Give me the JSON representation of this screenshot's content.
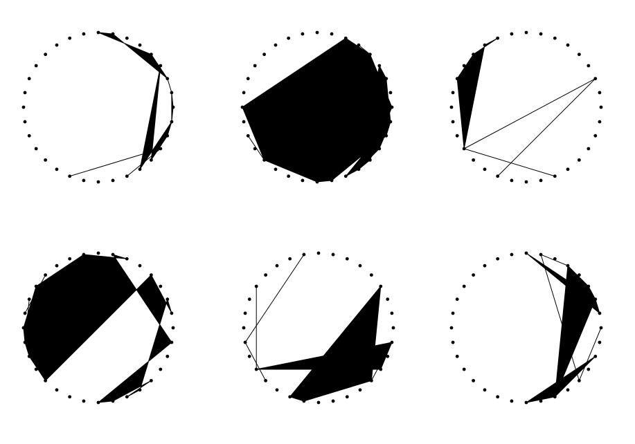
{
  "figure": {
    "panels": [
      {
        "id": "panel-1",
        "n_points": 32,
        "polygons": [
          [
            6,
            4,
            0,
            1,
            6,
            7,
            9,
            10,
            12,
            5,
            13,
            9,
            8,
            7,
            6
          ]
        ],
        "lines": [
          [
            11,
            18
          ],
          [
            11,
            14
          ]
        ],
        "dots_drawn": "all"
      },
      {
        "id": "panel-2",
        "n_points": 32,
        "polygons": [
          [
            4,
            8,
            12,
            13,
            14,
            9,
            10,
            15,
            16,
            20,
            24,
            2,
            4
          ],
          [
            9,
            11,
            13,
            5,
            6,
            9
          ]
        ],
        "lines": [
          [
            3,
            4
          ],
          [
            20,
            22
          ]
        ],
        "dots_drawn": "all"
      },
      {
        "id": "panel-3",
        "n_points": 32,
        "polygons": [
          [
            21,
            26,
            28,
            30,
            29,
            21
          ]
        ],
        "lines": [
          [
            21,
            6
          ],
          [
            21,
            14
          ],
          [
            6,
            18
          ]
        ],
        "dots_drawn": "all"
      },
      {
        "id": "panel-4",
        "n_points": 32,
        "polygons": [
          [
            4,
            7,
            6,
            13,
            14,
            12,
            15,
            16,
            9,
            1,
            2,
            31,
            27,
            24,
            23,
            22,
            20,
            4
          ]
        ],
        "lines": [
          [
            25,
            28
          ],
          [
            23,
            26
          ]
        ],
        "dots_drawn": "all"
      },
      {
        "id": "panel-5",
        "n_points": 32,
        "polygons": [
          [
            5,
            18,
            17,
            12,
            5
          ],
          [
            11,
            21,
            9,
            11
          ]
        ],
        "lines": [
          [
            9,
            12
          ],
          [
            23,
            20
          ],
          [
            23,
            31
          ],
          [
            21,
            27
          ]
        ],
        "dots_drawn": "all"
      },
      {
        "id": "panel-6",
        "n_points": 32,
        "polygons": [
          [
            5,
            3,
            14,
            6,
            5
          ],
          [
            14,
            16,
            10,
            14
          ],
          [
            7,
            6,
            0,
            7
          ]
        ],
        "lines": [
          [
            8,
            12
          ],
          [
            3,
            7
          ],
          [
            1,
            3
          ],
          [
            1,
            12
          ]
        ],
        "dots_drawn": "all"
      }
    ]
  }
}
